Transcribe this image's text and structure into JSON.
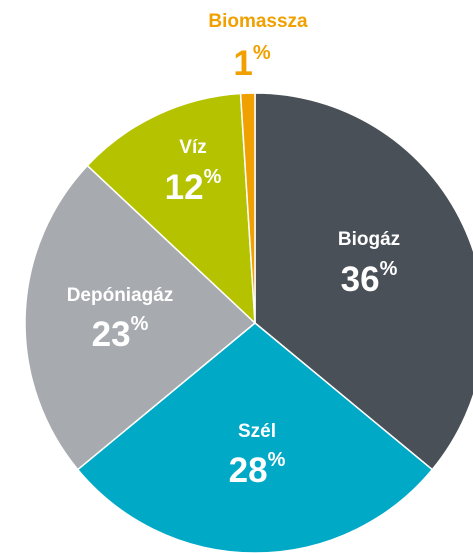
{
  "chart_data": {
    "type": "pie",
    "categories": [
      "Biogáz",
      "Szél",
      "Depóniagáz",
      "Víz",
      "Biomassza"
    ],
    "values": [
      36,
      28,
      23,
      12,
      1
    ],
    "value_labels": [
      "36%",
      "28%",
      "23%",
      "12%",
      "1%"
    ],
    "colors": [
      "#4a5057",
      "#00a9c6",
      "#a7abaf",
      "#b5c200",
      "#f0a000"
    ]
  }
}
